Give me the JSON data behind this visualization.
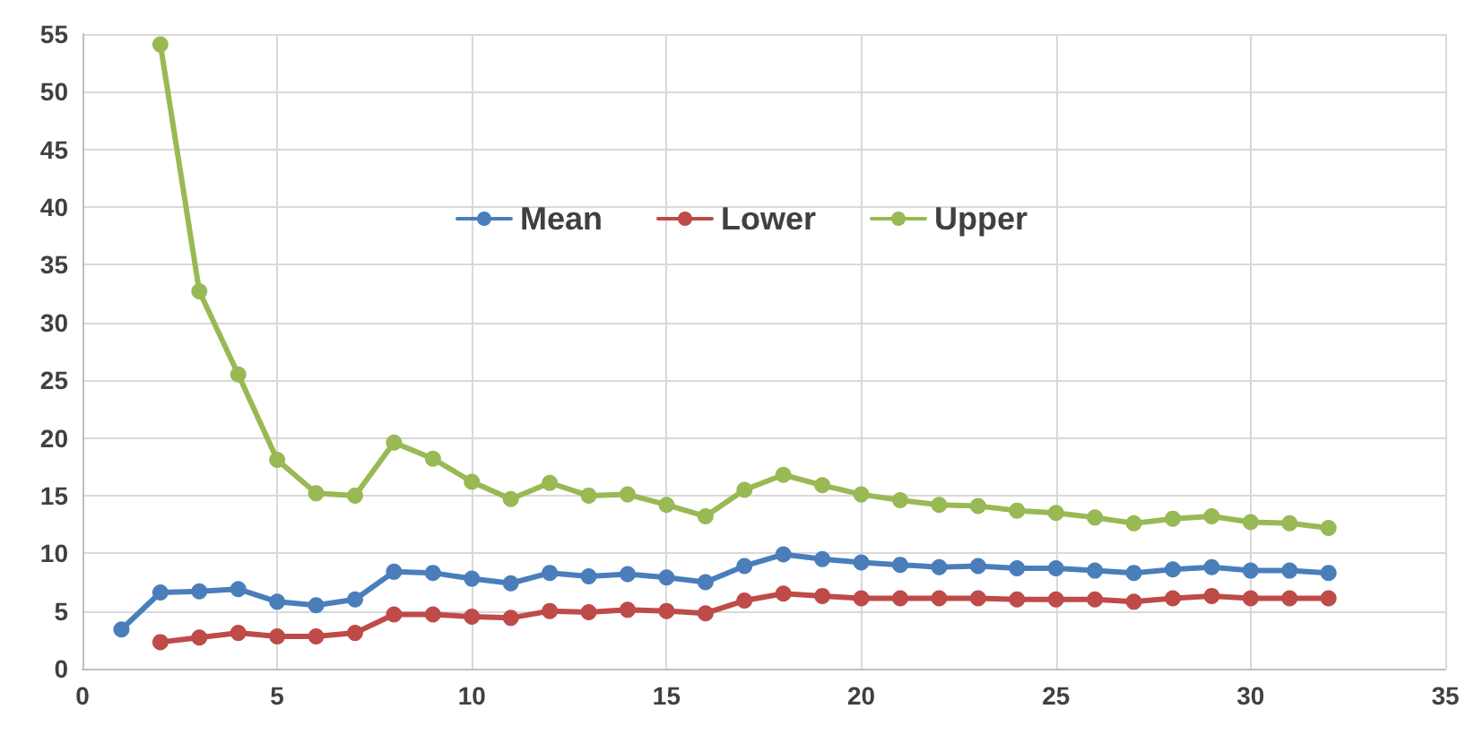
{
  "chart_data": {
    "type": "line",
    "x": [
      1,
      2,
      3,
      4,
      5,
      6,
      7,
      8,
      9,
      10,
      11,
      12,
      13,
      14,
      15,
      16,
      17,
      18,
      19,
      20,
      21,
      22,
      23,
      24,
      25,
      26,
      27,
      28,
      29,
      30,
      31,
      32
    ],
    "series": [
      {
        "name": "Mean",
        "color": "#4a7ebb",
        "values": [
          3.4,
          6.6,
          6.7,
          6.9,
          5.8,
          5.5,
          6.0,
          8.4,
          8.3,
          7.8,
          7.4,
          8.3,
          8.0,
          8.2,
          7.9,
          7.5,
          8.9,
          9.9,
          9.5,
          9.2,
          9.0,
          8.8,
          8.9,
          8.7,
          8.7,
          8.5,
          8.3,
          8.6,
          8.8,
          8.5,
          8.5,
          8.3
        ]
      },
      {
        "name": "Lower",
        "color": "#be4b48",
        "values": [
          null,
          2.3,
          2.7,
          3.1,
          2.8,
          2.8,
          3.1,
          4.7,
          4.7,
          4.5,
          4.4,
          5.0,
          4.9,
          5.1,
          5.0,
          4.8,
          5.9,
          6.5,
          6.3,
          6.1,
          6.1,
          6.1,
          6.1,
          6.0,
          6.0,
          6.0,
          5.8,
          6.1,
          6.3,
          6.1,
          6.1,
          6.1
        ]
      },
      {
        "name": "Upper",
        "color": "#98b954",
        "values": [
          null,
          54.1,
          32.7,
          25.5,
          18.1,
          15.2,
          15.0,
          19.6,
          18.2,
          16.2,
          14.7,
          16.1,
          15.0,
          15.1,
          14.2,
          13.2,
          15.5,
          16.8,
          15.9,
          15.1,
          14.6,
          14.2,
          14.1,
          13.7,
          13.5,
          13.1,
          12.6,
          13.0,
          13.2,
          12.7,
          12.6,
          12.2
        ]
      }
    ],
    "xlim": [
      0,
      35
    ],
    "xticks": [
      0,
      5,
      10,
      15,
      20,
      25,
      30,
      35
    ],
    "ylim": [
      0,
      55
    ],
    "yticks": [
      0,
      5,
      10,
      15,
      20,
      25,
      30,
      35,
      40,
      45,
      50,
      55
    ],
    "grid": true,
    "legend": "top",
    "marker": "circle",
    "line_style": "solid"
  }
}
